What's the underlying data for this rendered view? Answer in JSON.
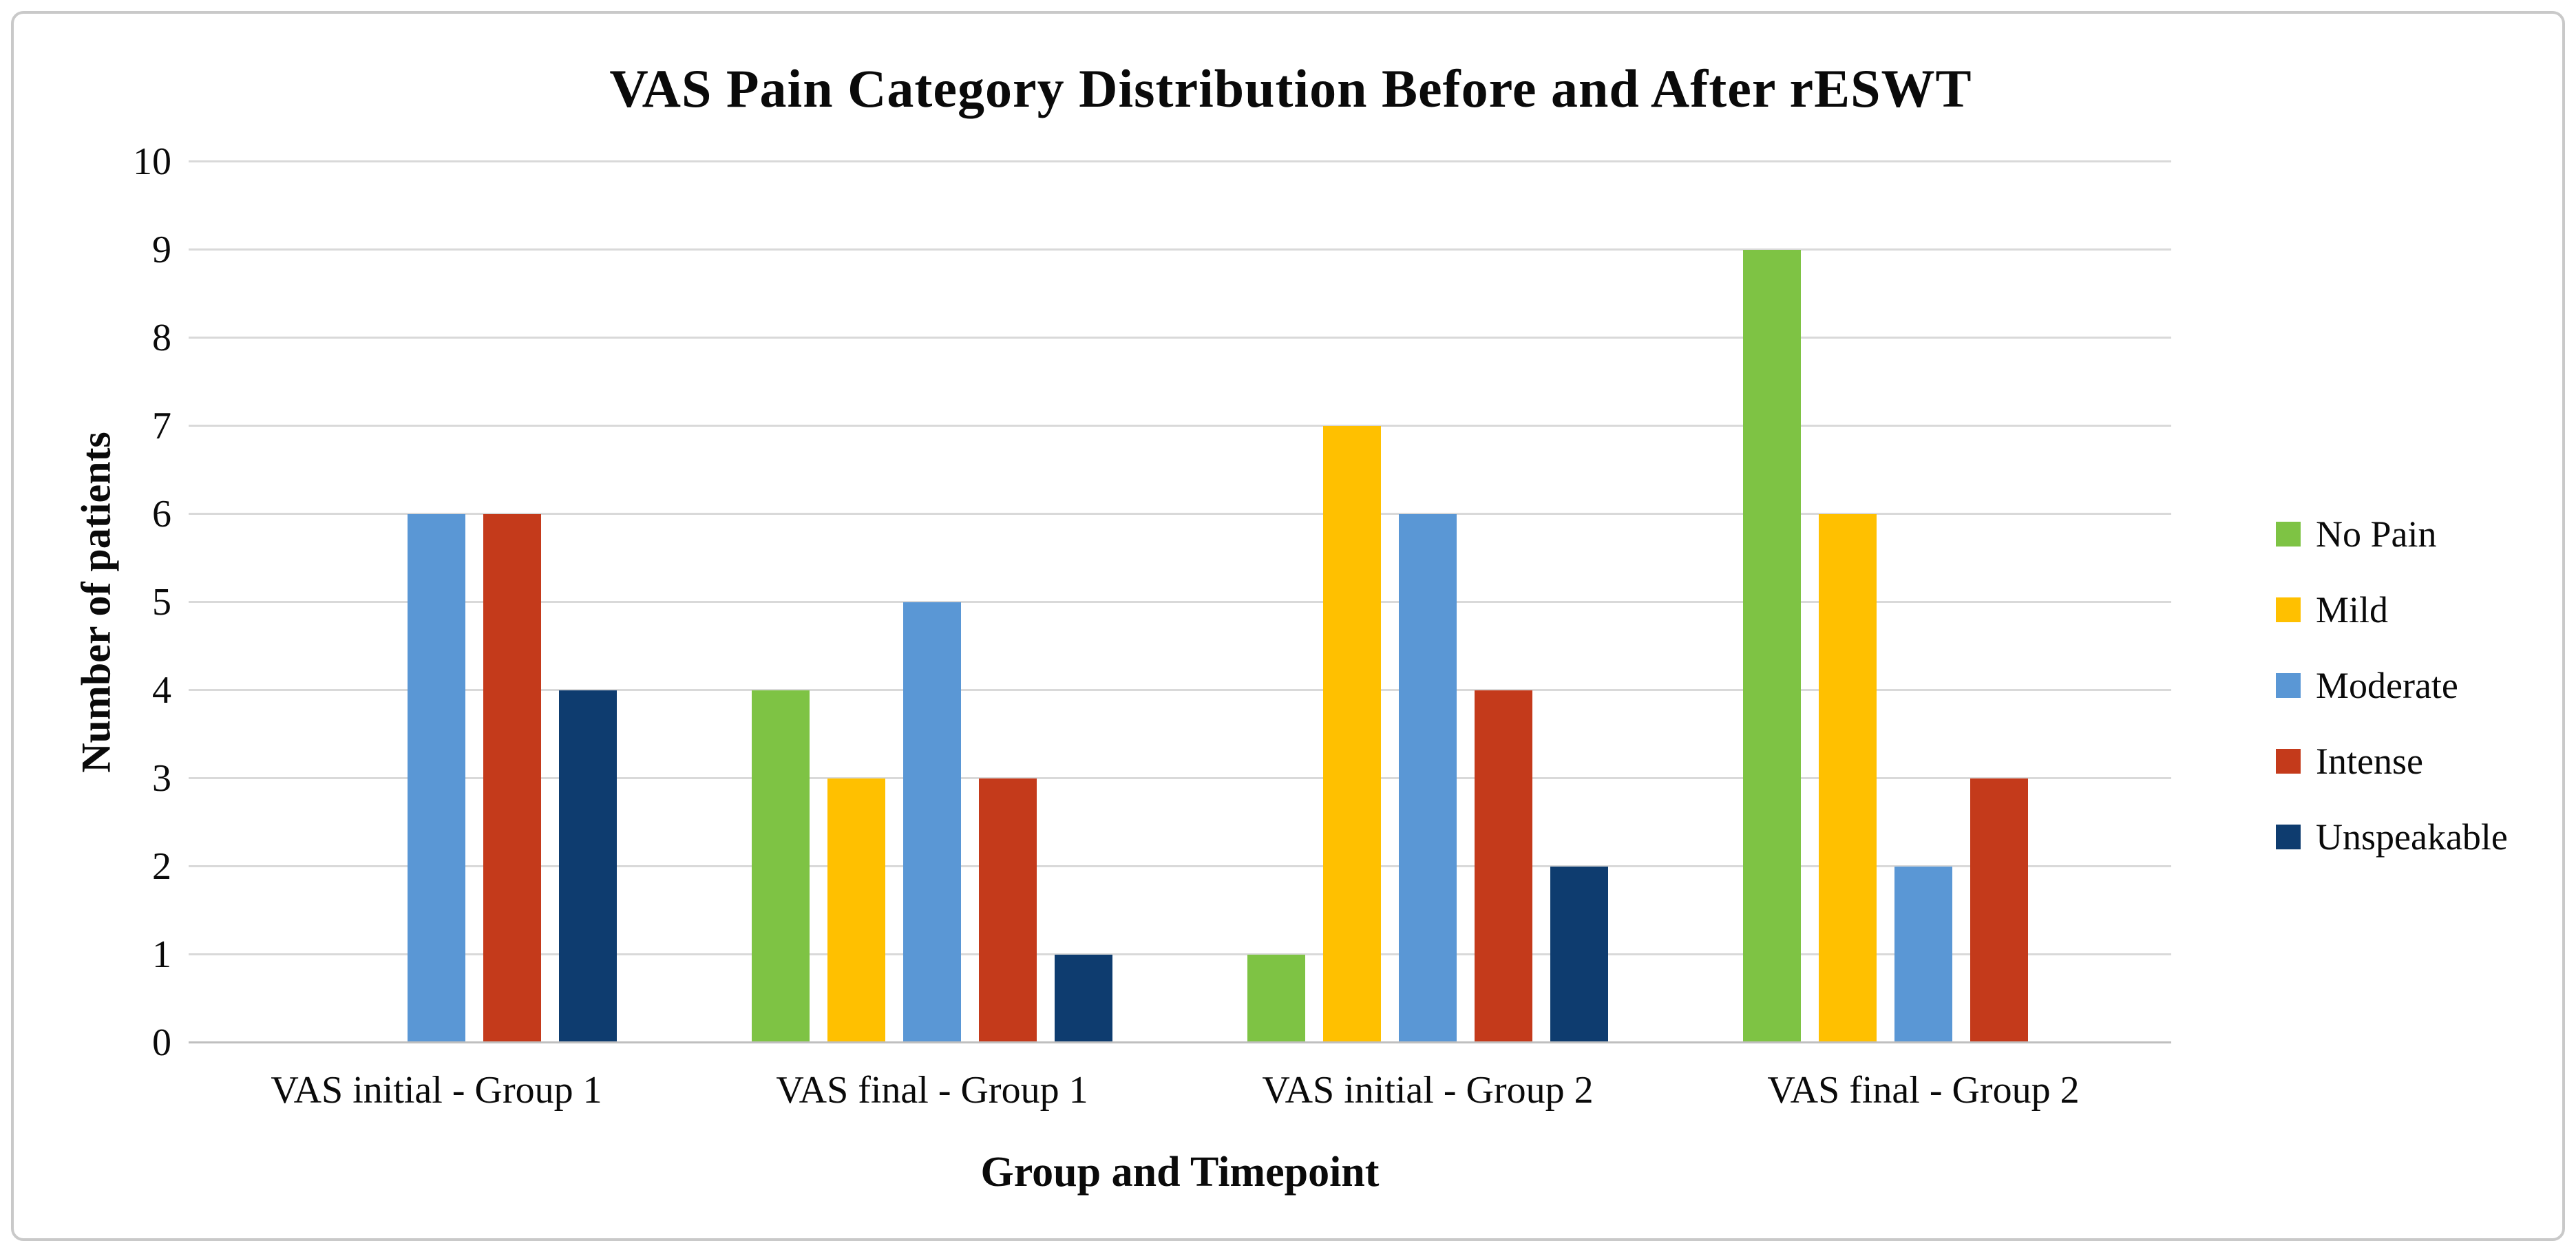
{
  "chart_data": {
    "type": "bar",
    "title": "VAS Pain Category Distribution Before and After rESWT",
    "xlabel": "Group and Timepoint",
    "ylabel": "Number of patients",
    "ylim": [
      0,
      10
    ],
    "yticks": [
      0,
      1,
      2,
      3,
      4,
      5,
      6,
      7,
      8,
      9,
      10
    ],
    "grid": true,
    "legend_position": "right",
    "categories": [
      "VAS initial - Group 1",
      "VAS final - Group 1",
      "VAS initial - Group 2",
      "VAS final - Group 2"
    ],
    "series": [
      {
        "name": "No Pain",
        "color": "#7ec344",
        "values": [
          0,
          4,
          1,
          9
        ]
      },
      {
        "name": "Mild",
        "color": "#ffc000",
        "values": [
          0,
          3,
          7,
          6
        ]
      },
      {
        "name": "Moderate",
        "color": "#5a97d5",
        "values": [
          6,
          5,
          6,
          2
        ]
      },
      {
        "name": "Intense",
        "color": "#c43a1b",
        "values": [
          6,
          3,
          4,
          3
        ]
      },
      {
        "name": "Unspeakable",
        "color": "#0e3c6f",
        "values": [
          4,
          1,
          2,
          0
        ]
      }
    ],
    "colors": {
      "gridline": "#d9d9d9",
      "axis_line": "#bfbfbf",
      "frame_border": "#c9c9c9",
      "text": "#0a0a0a"
    }
  }
}
